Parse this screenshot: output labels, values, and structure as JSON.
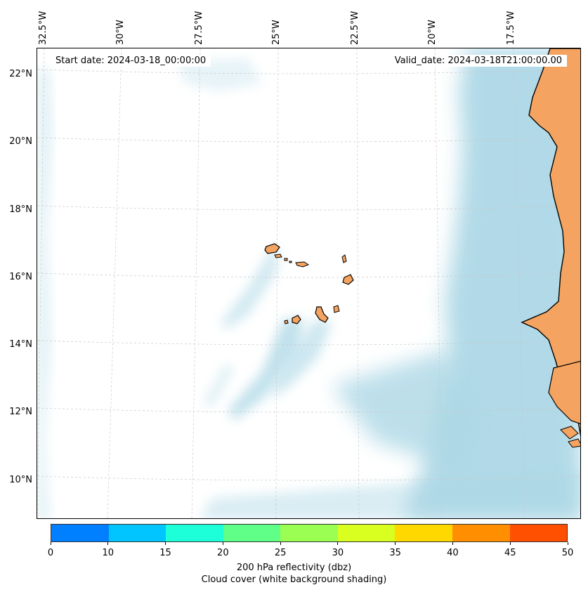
{
  "header": {
    "start_date": "Start date: 2024-03-18_00:00:00",
    "valid_date": "Valid_date: 2024-03-18T21:00:00.00"
  },
  "axes": {
    "lon_labels": [
      "32.5°W",
      "30°W",
      "27.5°W",
      "25°W",
      "22.5°W",
      "20°W",
      "17.5°W"
    ],
    "lat_labels": [
      "22°N",
      "20°N",
      "18°N",
      "16°N",
      "14°N",
      "12°N",
      "10°N"
    ]
  },
  "colorbar": {
    "colors": [
      "#007fff",
      "#00c5ff",
      "#1dffd8",
      "#5fff88",
      "#9aff52",
      "#d8ff1f",
      "#ffd800",
      "#ff8f00",
      "#ff4f00"
    ],
    "ticks": [
      "0",
      "10",
      "15",
      "20",
      "25",
      "30",
      "35",
      "40",
      "45",
      "50"
    ],
    "label_line1": "200 hPa reflectivity (dbz)",
    "label_line2": "Cloud cover (white background shading)"
  },
  "map": {
    "land_color": "#f4a460",
    "cloud_color": "#add8e6",
    "ocean_color": "#ffffff"
  }
}
